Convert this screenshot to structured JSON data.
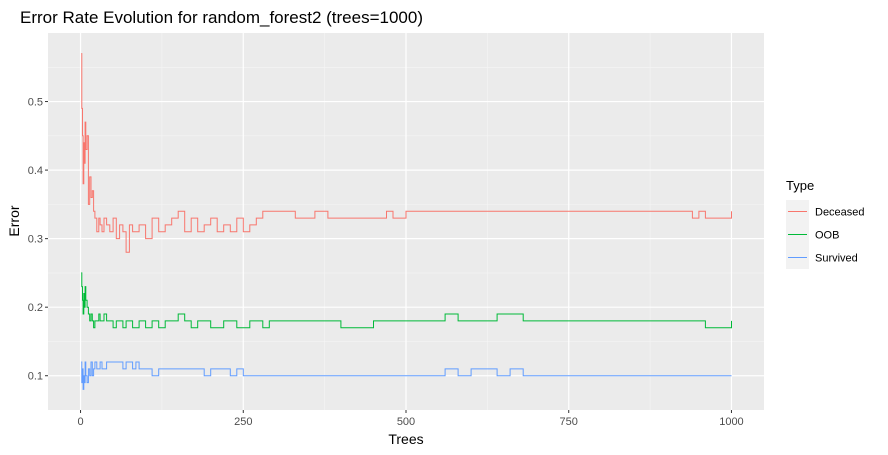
{
  "chart_data": {
    "type": "line",
    "title": "Error Rate Evolution for random_forest2 (trees=1000)",
    "xlabel": "Trees",
    "ylabel": "Error",
    "xlim": [
      -50,
      1050
    ],
    "ylim": [
      0.05,
      0.6
    ],
    "x_ticks": [
      0,
      250,
      500,
      750,
      1000
    ],
    "x_tick_labels": [
      "0",
      "250",
      "500",
      "750",
      "1000"
    ],
    "y_ticks": [
      0.1,
      0.2,
      0.3,
      0.4,
      0.5
    ],
    "y_tick_labels": [
      "0.1",
      "0.2",
      "0.3",
      "0.4",
      "0.5"
    ],
    "grid": true,
    "legend": {
      "title": "Type",
      "position": "right"
    },
    "series": [
      {
        "name": "Deceased",
        "color": "#F8766D",
        "x": [
          1,
          2,
          3,
          4,
          5,
          6,
          7,
          8,
          10,
          12,
          14,
          16,
          18,
          20,
          22,
          25,
          28,
          30,
          33,
          36,
          40,
          45,
          50,
          55,
          60,
          65,
          70,
          75,
          80,
          90,
          100,
          110,
          120,
          130,
          140,
          150,
          160,
          170,
          180,
          190,
          200,
          210,
          220,
          230,
          240,
          250,
          260,
          270,
          280,
          290,
          300,
          320,
          330,
          340,
          360,
          380,
          400,
          420,
          440,
          460,
          470,
          480,
          500,
          520,
          540,
          560,
          600,
          650,
          700,
          750,
          800,
          850,
          900,
          940,
          950,
          960,
          1000
        ],
        "y": [
          0.57,
          0.49,
          0.45,
          0.38,
          0.44,
          0.41,
          0.47,
          0.43,
          0.45,
          0.35,
          0.39,
          0.36,
          0.37,
          0.34,
          0.33,
          0.31,
          0.33,
          0.32,
          0.31,
          0.33,
          0.32,
          0.31,
          0.33,
          0.3,
          0.32,
          0.31,
          0.28,
          0.32,
          0.31,
          0.32,
          0.3,
          0.33,
          0.31,
          0.32,
          0.33,
          0.34,
          0.31,
          0.33,
          0.31,
          0.32,
          0.33,
          0.31,
          0.32,
          0.31,
          0.33,
          0.31,
          0.32,
          0.33,
          0.34,
          0.34,
          0.34,
          0.34,
          0.33,
          0.33,
          0.34,
          0.33,
          0.33,
          0.33,
          0.33,
          0.33,
          0.34,
          0.33,
          0.34,
          0.34,
          0.34,
          0.34,
          0.34,
          0.34,
          0.34,
          0.34,
          0.34,
          0.34,
          0.34,
          0.33,
          0.34,
          0.33,
          0.34
        ]
      },
      {
        "name": "OOB",
        "color": "#00BA38",
        "x": [
          1,
          2,
          3,
          4,
          5,
          6,
          7,
          8,
          10,
          12,
          14,
          16,
          18,
          20,
          22,
          25,
          28,
          30,
          33,
          36,
          40,
          45,
          50,
          55,
          60,
          65,
          70,
          80,
          90,
          100,
          110,
          120,
          130,
          140,
          150,
          160,
          170,
          180,
          200,
          220,
          240,
          260,
          280,
          290,
          300,
          320,
          330,
          360,
          400,
          450,
          500,
          540,
          560,
          580,
          600,
          620,
          640,
          660,
          680,
          700,
          750,
          800,
          850,
          900,
          950,
          960,
          1000
        ],
        "y": [
          0.25,
          0.23,
          0.21,
          0.19,
          0.22,
          0.2,
          0.23,
          0.21,
          0.2,
          0.19,
          0.18,
          0.19,
          0.18,
          0.17,
          0.18,
          0.18,
          0.19,
          0.18,
          0.18,
          0.19,
          0.18,
          0.18,
          0.17,
          0.18,
          0.18,
          0.17,
          0.18,
          0.17,
          0.18,
          0.17,
          0.18,
          0.17,
          0.18,
          0.18,
          0.19,
          0.18,
          0.17,
          0.18,
          0.17,
          0.18,
          0.17,
          0.18,
          0.17,
          0.18,
          0.18,
          0.18,
          0.18,
          0.18,
          0.17,
          0.18,
          0.18,
          0.18,
          0.19,
          0.18,
          0.18,
          0.18,
          0.19,
          0.19,
          0.18,
          0.18,
          0.18,
          0.18,
          0.18,
          0.18,
          0.18,
          0.17,
          0.18
        ]
      },
      {
        "name": "Survived",
        "color": "#619CFF",
        "x": [
          1,
          2,
          3,
          4,
          5,
          6,
          7,
          8,
          10,
          12,
          14,
          16,
          18,
          20,
          22,
          25,
          28,
          30,
          33,
          36,
          40,
          45,
          50,
          55,
          60,
          65,
          70,
          75,
          80,
          85,
          90,
          95,
          100,
          110,
          120,
          130,
          140,
          150,
          160,
          170,
          180,
          190,
          200,
          220,
          230,
          240,
          250,
          300,
          350,
          400,
          450,
          500,
          550,
          560,
          580,
          600,
          620,
          640,
          660,
          680,
          700,
          750,
          800,
          850,
          900,
          950,
          1000
        ],
        "y": [
          0.12,
          0.09,
          0.11,
          0.08,
          0.1,
          0.09,
          0.12,
          0.1,
          0.09,
          0.11,
          0.1,
          0.12,
          0.1,
          0.11,
          0.12,
          0.11,
          0.11,
          0.12,
          0.11,
          0.11,
          0.12,
          0.12,
          0.12,
          0.12,
          0.12,
          0.11,
          0.12,
          0.12,
          0.11,
          0.12,
          0.11,
          0.11,
          0.11,
          0.1,
          0.11,
          0.11,
          0.11,
          0.11,
          0.11,
          0.11,
          0.11,
          0.1,
          0.11,
          0.11,
          0.1,
          0.11,
          0.1,
          0.1,
          0.1,
          0.1,
          0.1,
          0.1,
          0.1,
          0.11,
          0.1,
          0.11,
          0.11,
          0.1,
          0.11,
          0.1,
          0.1,
          0.1,
          0.1,
          0.1,
          0.1,
          0.1,
          0.1
        ]
      }
    ]
  }
}
